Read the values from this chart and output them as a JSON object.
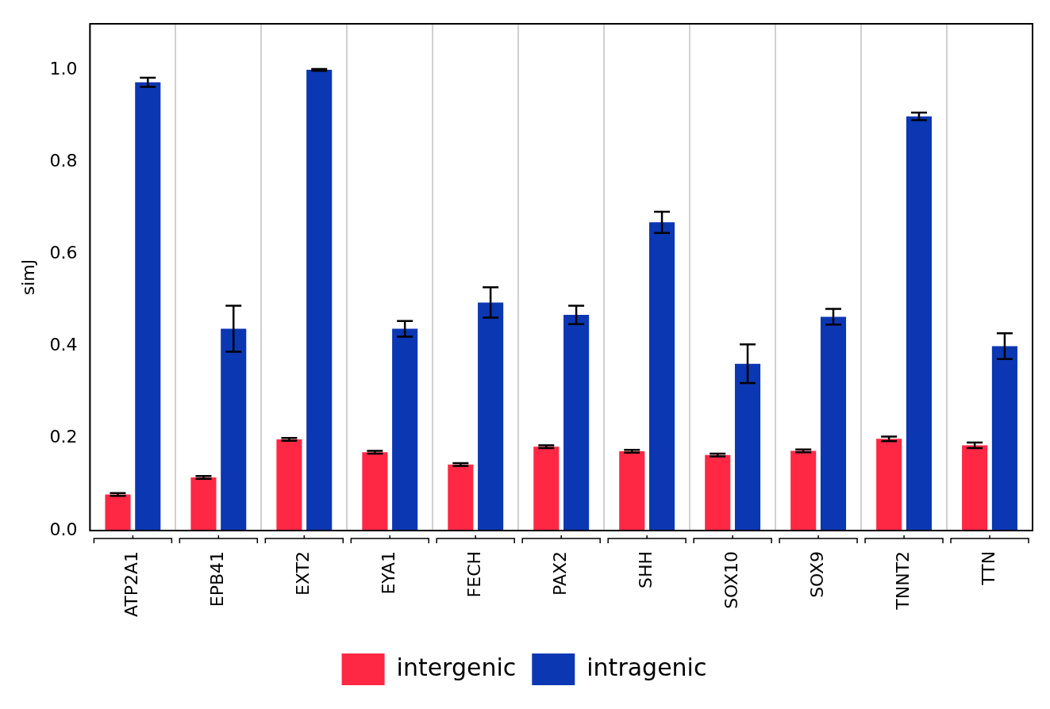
{
  "chart_data": {
    "type": "bar",
    "ylabel": "simJ",
    "categories": [
      "ATP2A1",
      "EPB41",
      "EXT2",
      "EYA1",
      "FECH",
      "PAX2",
      "SHH",
      "SOX10",
      "SOX9",
      "TNNT2",
      "TTN"
    ],
    "series": [
      {
        "name": "intergenic",
        "color": "#fe2845",
        "values": [
          0.078,
          0.115,
          0.198,
          0.17,
          0.143,
          0.182,
          0.172,
          0.164,
          0.173,
          0.199,
          0.185
        ],
        "errors": [
          0.003,
          0.003,
          0.003,
          0.003,
          0.003,
          0.003,
          0.003,
          0.003,
          0.003,
          0.005,
          0.006
        ]
      },
      {
        "name": "intragenic",
        "color": "#0c37b3",
        "values": [
          0.973,
          0.438,
          1.0,
          0.438,
          0.495,
          0.468,
          0.669,
          0.362,
          0.464,
          0.899,
          0.4
        ],
        "errors": [
          0.01,
          0.05,
          0.002,
          0.017,
          0.033,
          0.02,
          0.023,
          0.042,
          0.017,
          0.008,
          0.028
        ]
      }
    ],
    "ylim": [
      0,
      1.1
    ],
    "yticks": [
      {
        "value": 0,
        "label": "0.0"
      },
      {
        "value": 0.2,
        "label": "0.2"
      },
      {
        "value": 0.4,
        "label": "0.4"
      },
      {
        "value": 0.6,
        "label": "0.6"
      },
      {
        "value": 0.8,
        "label": "0.8"
      },
      {
        "value": 1.0,
        "label": "1.0"
      }
    ],
    "grid": "x",
    "legend": "bottom"
  }
}
